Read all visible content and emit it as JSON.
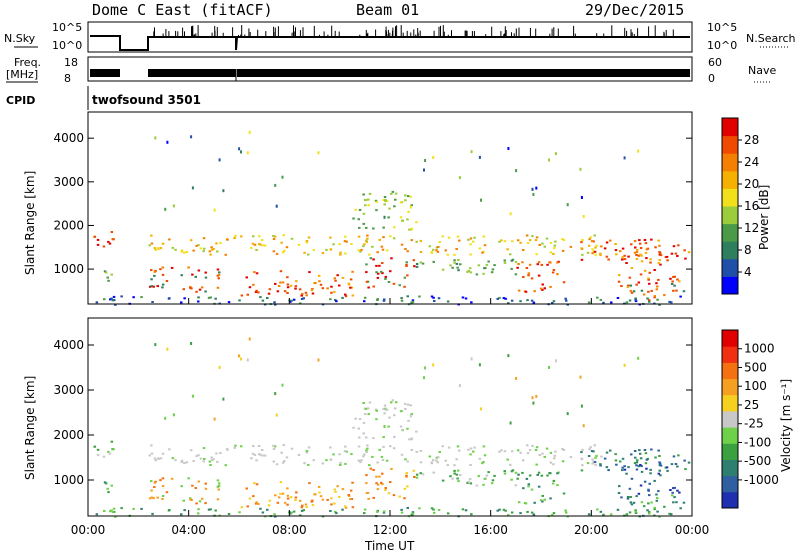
{
  "header": {
    "title": "Dome C East (fitACF)",
    "beam": "Beam 01",
    "date": "29/Dec/2015"
  },
  "strips": {
    "nsky_label": "N.Sky",
    "nsearch_label": "N.Search",
    "nsky_ticks": [
      "10^5",
      "10^0"
    ],
    "nsearch_ticks": [
      "10^5",
      "10^0"
    ],
    "freq_label_line1": "Freq.",
    "freq_label_line2": "[MHz]",
    "freq_ticks": [
      "18",
      "8"
    ],
    "nave_label": "Nave",
    "nave_ticks": [
      "60",
      "0"
    ],
    "cpid_label": "CPID",
    "cpid_value": "twofsound 3501"
  },
  "chart_data": [
    {
      "type": "heatmap",
      "name": "power",
      "ylabel": "Slant Range [km]",
      "yticks": [
        "1000",
        "2000",
        "3000",
        "4000"
      ],
      "ylim": [
        200,
        4600
      ],
      "xlim": [
        "00:00",
        "24:00"
      ],
      "colorbar_label": "Power [dB]",
      "colorbar_ticks": [
        "4",
        "8",
        "12",
        "16",
        "20",
        "24",
        "28"
      ],
      "colorbar_colors": [
        "#0000ff",
        "#1f4fa8",
        "#2f7f5f",
        "#4a9a48",
        "#9ccb3c",
        "#f2e01a",
        "#f5b000",
        "#f47f00",
        "#f04a00",
        "#e00000"
      ]
    },
    {
      "type": "heatmap",
      "name": "velocity",
      "ylabel": "Slant Range [km]",
      "yticks": [
        "1000",
        "2000",
        "3000",
        "4000"
      ],
      "ylim": [
        200,
        4600
      ],
      "xlim": [
        "00:00",
        "24:00"
      ],
      "xticks": [
        "00:00",
        "04:00",
        "08:00",
        "12:00",
        "16:00",
        "20:00",
        "00:00"
      ],
      "xlabel": "Time UT",
      "colorbar_label": "Velocity [m s⁻¹]",
      "colorbar_ticks": [
        "1000",
        "500",
        "100",
        "25",
        "-25",
        "-100",
        "-500",
        "-1000"
      ],
      "colorbar_colors": [
        "#1e2fb0",
        "#2f5fa0",
        "#2f7f70",
        "#3aa040",
        "#6fd04a",
        "#c8c8c8",
        "#f5d020",
        "#f5a020",
        "#f57010",
        "#f03010",
        "#e00000"
      ]
    }
  ]
}
